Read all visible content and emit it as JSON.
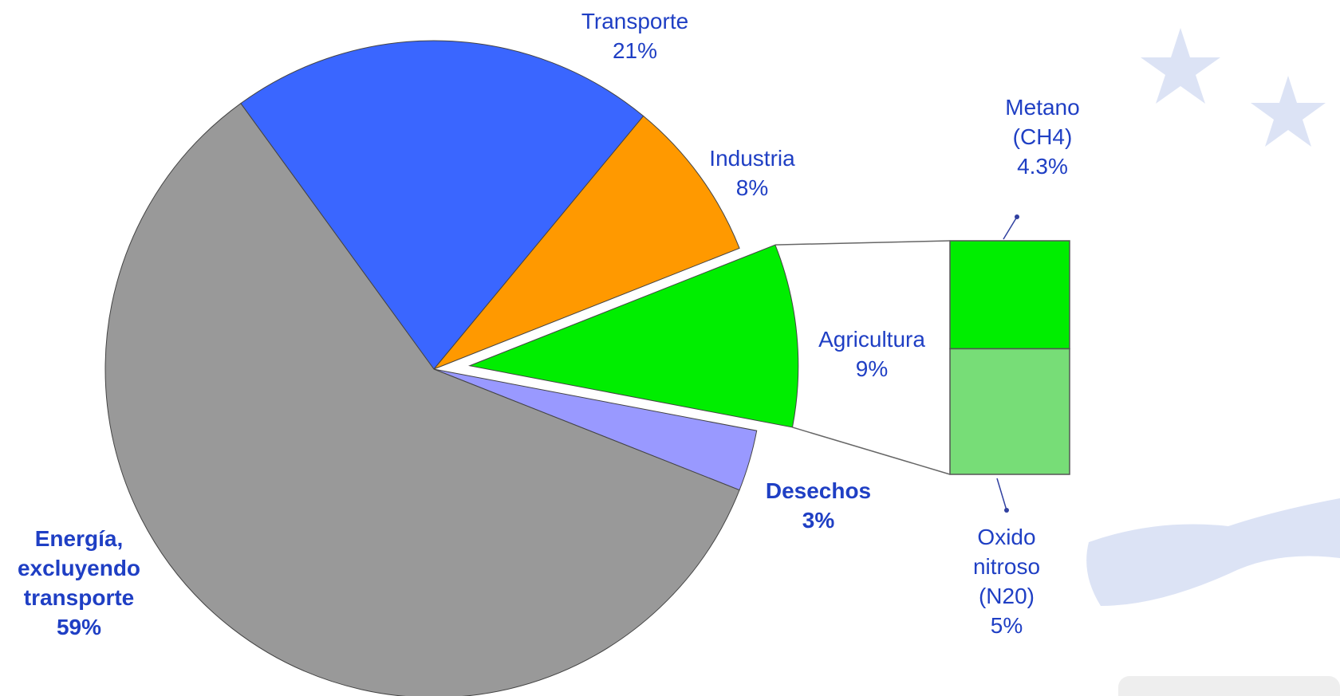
{
  "chart_data": {
    "type": "pie",
    "categories": [
      "Transporte",
      "Industria",
      "Agricultura",
      "Desechos",
      "Energía, excluyendo transporte"
    ],
    "values": [
      21,
      8,
      9,
      3,
      59
    ],
    "value_labels": [
      "21%",
      "8%",
      "9%",
      "3%",
      "59%"
    ],
    "colors": [
      "#3a66ff",
      "#ff9900",
      "#00ee00",
      "#9999ff",
      "#999999"
    ],
    "breakdown": {
      "type": "bar",
      "categories": [
        "Metano (CH4)",
        "Oxido nitroso (N20)"
      ],
      "values": [
        4.3,
        5
      ],
      "value_labels": [
        "4.3%",
        "5%"
      ],
      "colors": [
        "#00ee00",
        "#77dd77"
      ]
    }
  }
}
